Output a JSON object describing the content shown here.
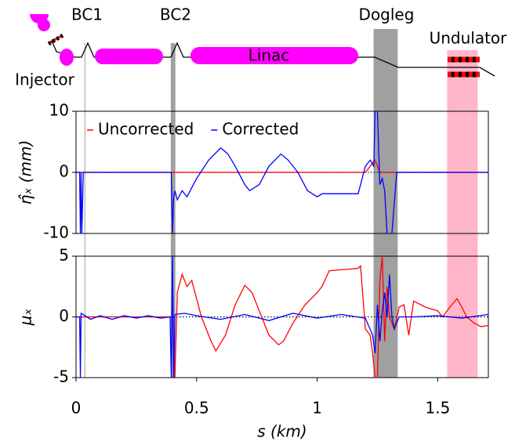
{
  "schematic": {
    "labels": {
      "bc1": "BC1",
      "bc2": "BC2",
      "dogleg": "Dogleg",
      "undulator": "Undulator",
      "linac": "Linac",
      "injector": "Injector"
    },
    "regions": [
      {
        "xrange": [
          0.035,
          0.038
        ],
        "color": "#a0a0a0"
      },
      {
        "xrange": [
          0.393,
          0.412
        ],
        "color": "#a0a0a0"
      },
      {
        "xrange": [
          1.234,
          1.334
        ],
        "color": "#a0a0a0"
      },
      {
        "xrange": [
          1.539,
          1.666
        ],
        "color": "#ffb6c8"
      }
    ]
  },
  "chart_data": [
    {
      "type": "line",
      "ylabel": "η̂ₓ (mm)",
      "xlim": [
        0,
        1.71
      ],
      "ylim": [
        -10,
        10
      ],
      "yticks": [
        -10,
        0,
        10
      ],
      "reference_line": 0,
      "legend": "upper left",
      "series": [
        {
          "name": "Uncorrected",
          "color": "#ff0000",
          "x": [
            0,
            0.4,
            1.2,
            1.23,
            1.24,
            1.26,
            1.71
          ],
          "values": [
            0,
            0,
            0,
            1.5,
            2,
            0,
            0
          ]
        },
        {
          "name": "Corrected",
          "color": "#0000ff",
          "x": [
            0,
            0.015,
            0.018,
            0.021,
            0.024,
            0.03,
            0.1,
            0.2,
            0.3,
            0.39,
            0.395,
            0.4,
            0.405,
            0.41,
            0.42,
            0.44,
            0.46,
            0.5,
            0.55,
            0.6,
            0.63,
            0.66,
            0.7,
            0.72,
            0.76,
            0.8,
            0.85,
            0.88,
            0.92,
            0.96,
            1.0,
            1.02,
            1.1,
            1.17,
            1.18,
            1.2,
            1.22,
            1.235,
            1.24,
            1.25,
            1.26,
            1.27,
            1.28,
            1.29,
            1.3,
            1.31,
            1.33,
            1.34,
            1.4,
            1.5,
            1.6,
            1.71
          ],
          "values": [
            0,
            0,
            -10,
            0,
            -10,
            0,
            0,
            0,
            0,
            0,
            0,
            -10,
            -4,
            -3,
            -4.5,
            -3,
            -4,
            -1,
            2,
            4,
            3,
            1,
            -2,
            -3,
            -2,
            1,
            3,
            2,
            0,
            -3,
            -4,
            -3.5,
            -3.5,
            -3.5,
            -2,
            1,
            2,
            1,
            10,
            10,
            -2,
            -1,
            -3,
            -10,
            -10,
            -10,
            0,
            0,
            0,
            0,
            0,
            0
          ]
        }
      ]
    },
    {
      "type": "line",
      "ylabel": "μₓ",
      "xlabel": "s (km)",
      "xlim": [
        0,
        1.71
      ],
      "xticks": [
        0,
        0.5,
        1,
        1.5
      ],
      "ylim": [
        -5,
        5
      ],
      "yticks": [
        -5,
        0,
        5
      ],
      "reference_line": 0,
      "series": [
        {
          "color": "#ff0000",
          "x": [
            0,
            0.4,
            0.41,
            0.42,
            0.44,
            0.46,
            0.48,
            0.52,
            0.56,
            0.58,
            0.62,
            0.66,
            0.7,
            0.73,
            0.76,
            0.8,
            0.84,
            0.86,
            0.9,
            0.95,
            1.0,
            1.02,
            1.05,
            1.17,
            1.18,
            1.2,
            1.22,
            1.23,
            1.24,
            1.25,
            1.26,
            1.27,
            1.28,
            1.29,
            1.3,
            1.32,
            1.34,
            1.36,
            1.38,
            1.4,
            1.45,
            1.5,
            1.52,
            1.55,
            1.58,
            1.6,
            1.62,
            1.65,
            1.68,
            1.71
          ],
          "values": [
            0,
            0,
            -5,
            2,
            3.5,
            2.5,
            3,
            0,
            -2,
            -2.8,
            -1.5,
            1,
            2.6,
            2,
            0.5,
            -1.5,
            -2.3,
            -2,
            -0.5,
            1,
            2,
            2.5,
            3.8,
            4,
            4.2,
            -1,
            -1.5,
            -3,
            -5,
            -5,
            3,
            5,
            -2,
            2.5,
            0,
            -1,
            0.8,
            1,
            -1.5,
            1.3,
            0.8,
            0.5,
            0,
            0.8,
            1.5,
            0.8,
            0,
            -0.5,
            -0.8,
            -0.7
          ]
        },
        {
          "color": "#0000ff",
          "x": [
            0,
            0.015,
            0.018,
            0.021,
            0.03,
            0.06,
            0.1,
            0.15,
            0.2,
            0.25,
            0.3,
            0.35,
            0.39,
            0.395,
            0.4,
            0.405,
            0.41,
            0.45,
            0.5,
            0.6,
            0.7,
            0.8,
            0.9,
            1.0,
            1.1,
            1.2,
            1.23,
            1.24,
            1.25,
            1.26,
            1.27,
            1.28,
            1.29,
            1.3,
            1.31,
            1.32,
            1.34,
            1.4,
            1.5,
            1.6,
            1.71
          ],
          "values": [
            0,
            0,
            -5,
            0.3,
            0.2,
            -0.2,
            0.1,
            -0.2,
            0.1,
            -0.1,
            0.1,
            -0.1,
            0,
            -5,
            5,
            -5,
            0.2,
            0.3,
            0.1,
            -0.2,
            0.2,
            -0.3,
            0.3,
            -0.1,
            0.2,
            -0.1,
            -1.5,
            -3,
            1,
            -2,
            0.5,
            2,
            0,
            3.5,
            0,
            -1,
            0,
            0,
            0.1,
            -0.1,
            0.2
          ]
        }
      ]
    }
  ]
}
